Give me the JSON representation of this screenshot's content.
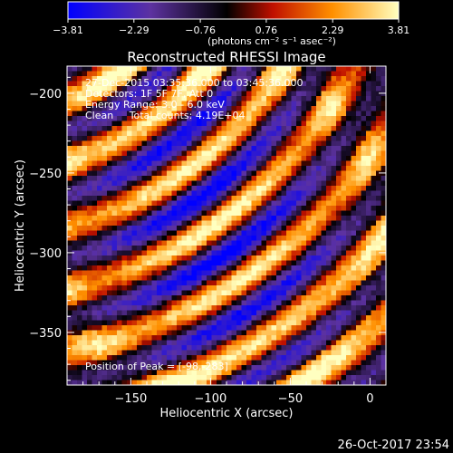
{
  "colorbar": {
    "ticks": [
      "-3.81",
      "-2.29",
      "-0.76",
      "0.76",
      "2.29",
      "3.81"
    ],
    "unit_label": "(photons cm⁻² s⁻¹ asec⁻²)",
    "range": [
      -3.81,
      3.81
    ]
  },
  "chart_data": {
    "type": "heatmap",
    "title": "Reconstructed RHESSI Image",
    "xlabel": "Heliocentric X (arcsec)",
    "ylabel": "Heliocentric Y (arcsec)",
    "xlim": [
      -190,
      10
    ],
    "ylim": [
      -383,
      -183
    ],
    "xticks": [
      -150,
      -100,
      -50,
      0
    ],
    "yticks": [
      -350,
      -300,
      -250,
      -200
    ],
    "xtick_labels": [
      "−150",
      "−100",
      "−50",
      "0"
    ],
    "ytick_labels": [
      "−350",
      "−300",
      "−250",
      "−200"
    ],
    "peak": [
      -98,
      -283
    ],
    "value_range": [
      -3.81,
      3.81
    ],
    "annotations": {
      "time_range": "27-Dec-2015 03:35:36.000 to 03:45:36.000",
      "detectors": "Detectors: 1F 5F 7F, Att 0",
      "energy": "Energy Range: 3.0 - 6.0 keV",
      "clean": "Clean     Total counts: 4.19E+04",
      "peak_label": "Position of Peak = [-98,-283]"
    }
  },
  "footer": {
    "timestamp": "26-Oct-2017 23:54"
  }
}
